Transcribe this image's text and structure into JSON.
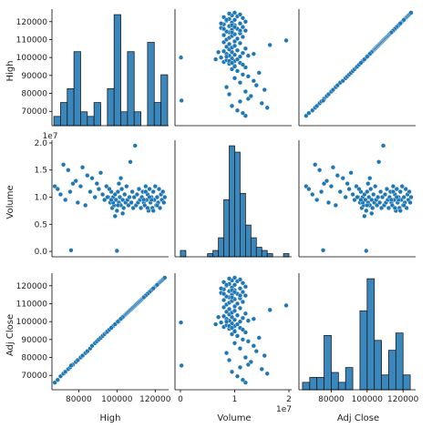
{
  "chart_data": {
    "type": "scatter",
    "title": "",
    "variables": [
      "High",
      "Volume",
      "Adj Close"
    ],
    "colors": {
      "marker": "#1f77b4",
      "hist_fill": "#3a87bd",
      "edge": "#1c1c1c"
    },
    "axes": {
      "High": {
        "lim": [
          66000,
          127000
        ],
        "ticks": [
          80000,
          100000,
          120000
        ],
        "tick_labels": [
          "80000",
          "100000",
          "120000"
        ],
        "ylim_row": [
          62000,
          127000
        ],
        "yticks": [
          70000,
          80000,
          90000,
          100000,
          110000,
          120000
        ],
        "ytick_labels": [
          "70000",
          "80000",
          "90000",
          "100000",
          "110000",
          "120000"
        ]
      },
      "Volume": {
        "lim": [
          -0.1,
          2.05
        ],
        "ticks": [
          0,
          1,
          2
        ],
        "tick_labels": [
          "0",
          "1",
          "2"
        ],
        "ylim_row": [
          -0.1,
          2.05
        ],
        "yticks": [
          0.0,
          0.5,
          1.0,
          1.5,
          2.0
        ],
        "ytick_labels": [
          "0.0",
          "0.5",
          "1.0",
          "1.5",
          "2.0"
        ],
        "offset_text": "1e7"
      },
      "Adj Close": {
        "lim": [
          62000,
          127000
        ],
        "ticks": [
          80000,
          100000,
          120000
        ],
        "tick_labels": [
          "80000",
          "100000",
          "120000"
        ],
        "ylim_row": [
          62000,
          127000
        ],
        "yticks": [
          70000,
          80000,
          90000,
          100000,
          110000,
          120000
        ],
        "ytick_labels": [
          "70000",
          "80000",
          "90000",
          "100000",
          "110000",
          "120000"
        ]
      }
    },
    "histograms": {
      "High": {
        "bins": [
          67000,
          70500,
          74000,
          77500,
          81000,
          84500,
          88000,
          91500,
          95000,
          98500,
          102000,
          105500,
          109000,
          112500,
          116000,
          119500,
          123000,
          126500
        ],
        "counts": [
          2,
          5,
          8,
          16,
          3,
          2,
          5,
          0,
          8,
          24,
          3,
          16,
          3,
          0,
          18,
          5,
          11
        ]
      },
      "Volume": {
        "bins": [
          0.0,
          0.1,
          0.2,
          0.3,
          0.4,
          0.5,
          0.6,
          0.7,
          0.8,
          0.9,
          1.0,
          1.1,
          1.2,
          1.3,
          1.4,
          1.5,
          1.6,
          1.7,
          1.8,
          1.9,
          2.0
        ],
        "counts": [
          2,
          0,
          0,
          0,
          0,
          1,
          2,
          6,
          18,
          35,
          33,
          20,
          10,
          6,
          3,
          2,
          1,
          0,
          0,
          1
        ]
      },
      "Adj Close": {
        "bins": [
          64000,
          68000,
          72000,
          76000,
          80000,
          84000,
          88000,
          92000,
          96000,
          100000,
          104000,
          108000,
          112000,
          116000,
          120000,
          124000
        ],
        "counts": [
          3,
          5,
          5,
          22,
          7,
          3,
          9,
          0,
          32,
          45,
          20,
          6,
          16,
          23,
          6
        ]
      }
    },
    "points": [
      [
        67500,
        1.2,
        66000
      ],
      [
        69000,
        1.15,
        67500
      ],
      [
        70500,
        1.05,
        69500
      ],
      [
        72000,
        1.6,
        71000
      ],
      [
        73000,
        0.95,
        72000
      ],
      [
        74500,
        1.5,
        73500
      ],
      [
        75500,
        1.1,
        74500
      ],
      [
        77000,
        1.25,
        76000
      ],
      [
        78500,
        1.3,
        77500
      ],
      [
        79500,
        0.9,
        78500
      ],
      [
        81000,
        1.2,
        80000
      ],
      [
        82000,
        1.55,
        81000
      ],
      [
        83500,
        0.85,
        82500
      ],
      [
        84500,
        1.4,
        83500
      ],
      [
        86000,
        1.1,
        85000
      ],
      [
        87000,
        1.35,
        86500
      ],
      [
        88500,
        1.0,
        88000
      ],
      [
        89500,
        1.25,
        89000
      ],
      [
        90500,
        1.15,
        90000
      ],
      [
        91500,
        1.45,
        91000
      ],
      [
        92500,
        1.05,
        92000
      ],
      [
        93500,
        0.95,
        93000
      ],
      [
        94500,
        1.2,
        94000
      ],
      [
        95500,
        1.0,
        95000
      ],
      [
        96500,
        0.9,
        96000
      ],
      [
        97000,
        1.1,
        96500
      ],
      [
        97500,
        0.8,
        97000
      ],
      [
        98000,
        1.0,
        97500
      ],
      [
        98500,
        0.85,
        98000
      ],
      [
        99000,
        1.05,
        98500
      ],
      [
        99500,
        0.95,
        99000
      ],
      [
        100000,
        0.75,
        99500
      ],
      [
        100500,
        1.1,
        100000
      ],
      [
        101000,
        0.9,
        100500
      ],
      [
        101500,
        1.0,
        101000
      ],
      [
        102000,
        0.85,
        101500
      ],
      [
        102500,
        1.15,
        102000
      ],
      [
        103000,
        0.95,
        102500
      ],
      [
        103500,
        0.8,
        103000
      ],
      [
        104000,
        1.05,
        103500
      ],
      [
        104500,
        0.9,
        104000
      ],
      [
        105000,
        1.2,
        104500
      ],
      [
        105500,
        0.95,
        105000
      ],
      [
        106000,
        0.85,
        105500
      ],
      [
        106500,
        1.0,
        106000
      ],
      [
        107000,
        1.65,
        106500
      ],
      [
        107500,
        0.9,
        107000
      ],
      [
        108000,
        1.1,
        107500
      ],
      [
        108500,
        0.8,
        108000
      ],
      [
        109000,
        1.0,
        108500
      ],
      [
        109500,
        1.95,
        109000
      ],
      [
        110000,
        0.85,
        109500
      ],
      [
        110500,
        1.05,
        110000
      ],
      [
        111000,
        0.9,
        110500
      ],
      [
        111500,
        1.15,
        111000
      ],
      [
        112000,
        0.95,
        111500
      ],
      [
        112500,
        0.8,
        112000
      ],
      [
        113000,
        1.0,
        112500
      ],
      [
        113500,
        1.1,
        113000
      ],
      [
        114000,
        0.9,
        113500
      ],
      [
        114500,
        0.85,
        114000
      ],
      [
        115000,
        1.2,
        114500
      ],
      [
        115500,
        0.95,
        115000
      ],
      [
        116000,
        1.05,
        115500
      ],
      [
        116500,
        0.75,
        116000
      ],
      [
        117000,
        1.15,
        116500
      ],
      [
        117500,
        0.9,
        117000
      ],
      [
        118000,
        1.0,
        117500
      ],
      [
        118500,
        0.8,
        118000
      ],
      [
        119000,
        1.1,
        118500
      ],
      [
        119500,
        0.95,
        119000
      ],
      [
        120000,
        1.2,
        119500
      ],
      [
        120500,
        0.85,
        120000
      ],
      [
        121000,
        1.0,
        120500
      ],
      [
        121500,
        0.9,
        121000
      ],
      [
        122000,
        1.15,
        121500
      ],
      [
        122500,
        0.8,
        122000
      ],
      [
        123000,
        1.05,
        122500
      ],
      [
        123500,
        0.95,
        123000
      ],
      [
        124000,
        1.1,
        123500
      ],
      [
        124500,
        0.9,
        124000
      ],
      [
        125000,
        1.0,
        124500
      ],
      [
        100000,
        0.01,
        99500
      ],
      [
        76000,
        0.02,
        75500
      ],
      [
        95000,
        1.0,
        94500
      ],
      [
        98000,
        0.9,
        97500
      ],
      [
        101000,
        1.25,
        100500
      ],
      [
        103000,
        0.7,
        102500
      ],
      [
        99000,
        0.65,
        98500
      ],
      [
        102000,
        1.35,
        101500
      ],
      [
        118000,
        0.95,
        117500
      ],
      [
        121000,
        0.85,
        120500
      ],
      [
        119000,
        0.75,
        118500
      ],
      [
        117000,
        1.0,
        116500
      ],
      [
        116000,
        0.8,
        115500
      ],
      [
        115000,
        1.1,
        114500
      ],
      [
        114000,
        0.95,
        113500
      ],
      [
        96000,
        1.15,
        95500
      ],
      [
        97000,
        0.95,
        96500
      ],
      [
        100500,
        0.85,
        100000
      ]
    ]
  }
}
